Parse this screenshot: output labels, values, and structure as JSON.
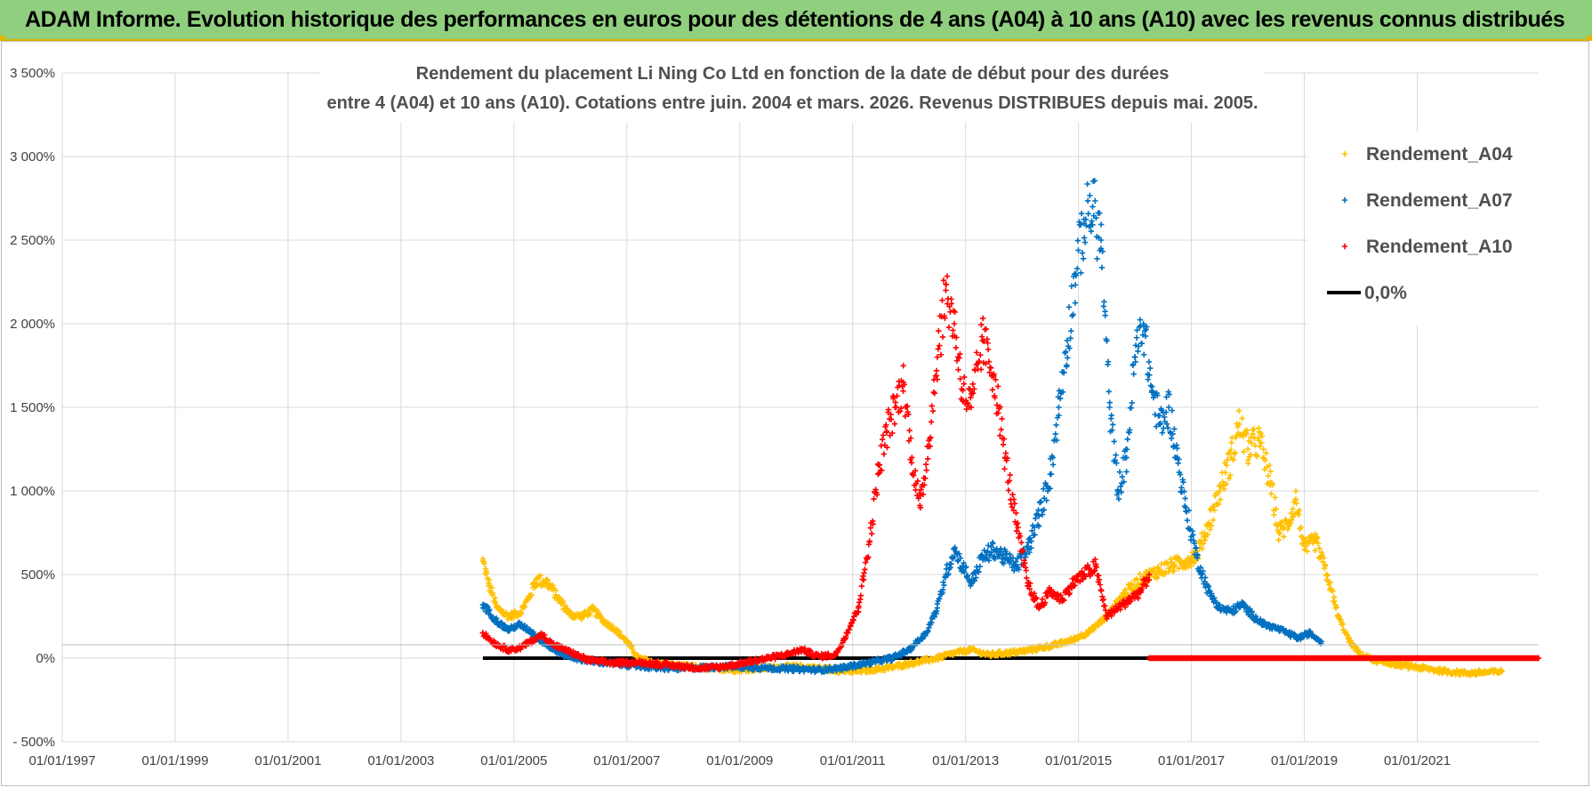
{
  "banner": {
    "title": "ADAM Informe. Evolution historique des performances en euros pour des détentions de 4 ans (A04) à 10 ans (A10) avec les revenus connus distribués"
  },
  "chart_data": {
    "type": "scatter",
    "title": [
      "Rendement du placement Li Ning Co Ltd en fonction de la date de début pour des durées",
      "entre 4 (A04) et 10 ans (A10).  Cotations entre juin. 2004 et mars. 2026. Revenus DISTRIBUES depuis mai. 2005."
    ],
    "xlabel": "",
    "ylabel": "",
    "x_ticks": [
      "01/01/1997",
      "01/01/1999",
      "01/01/2001",
      "01/01/2003",
      "01/01/2005",
      "01/01/2007",
      "01/01/2009",
      "01/01/2011",
      "01/01/2013",
      "01/01/2015",
      "01/01/2017",
      "01/01/2019",
      "01/01/2021"
    ],
    "y_ticks": [
      "3 500%",
      "3 000%",
      "2 500%",
      "2 000%",
      "1 500%",
      "1 000%",
      "500%",
      "0%",
      "- 500%"
    ],
    "xlim": [
      1997.0,
      2023.15
    ],
    "ylim": [
      -500,
      3500
    ],
    "grid": true,
    "legend_position": "top-right",
    "legend": [
      {
        "name": "Rendement_A04",
        "color": "#ffc000",
        "marker": "+"
      },
      {
        "name": "Rendement_A07",
        "color": "#0070c0",
        "marker": "+"
      },
      {
        "name": "Rendement_A10",
        "color": "#ff0000",
        "marker": "+"
      },
      {
        "name": "0,0%",
        "color": "#000000",
        "marker": "line"
      }
    ],
    "series": [
      {
        "name": "Rendement_A04",
        "color": "#ffc000",
        "x": [
          2004.45,
          2004.55,
          2004.7,
          2004.9,
          2005.1,
          2005.25,
          2005.4,
          2005.6,
          2005.8,
          2006.0,
          2006.2,
          2006.4,
          2006.6,
          2006.8,
          2007.0,
          2007.2,
          2007.5,
          2007.8,
          2008.1,
          2008.5,
          2008.9,
          2009.2,
          2009.6,
          2010.0,
          2010.4,
          2010.8,
          2011.0,
          2011.3,
          2011.6,
          2011.9,
          2012.2,
          2012.5,
          2012.8,
          2013.1,
          2013.4,
          2013.7,
          2014.0,
          2014.3,
          2014.6,
          2014.9,
          2015.2,
          2015.5,
          2015.8,
          2016.1,
          2016.4,
          2016.7,
          2016.9,
          2017.1,
          2017.3,
          2017.5,
          2017.7,
          2017.85,
          2018.0,
          2018.2,
          2018.4,
          2018.55,
          2018.7,
          2018.85,
          2019.0,
          2019.2,
          2019.4,
          2019.6,
          2019.8,
          2020.0,
          2020.3,
          2020.7,
          2021.1,
          2021.5,
          2021.9,
          2022.2,
          2022.5
        ],
        "values": [
          580,
          450,
          300,
          250,
          270,
          350,
          470,
          450,
          350,
          260,
          250,
          290,
          220,
          170,
          100,
          0,
          -30,
          -40,
          -50,
          -60,
          -70,
          -65,
          -55,
          -50,
          -60,
          -75,
          -80,
          -70,
          -60,
          -40,
          -20,
          0,
          30,
          50,
          20,
          30,
          40,
          60,
          80,
          110,
          160,
          250,
          380,
          470,
          520,
          560,
          580,
          620,
          800,
          1000,
          1200,
          1400,
          1250,
          1300,
          1050,
          750,
          800,
          950,
          650,
          700,
          500,
          250,
          100,
          20,
          -20,
          -40,
          -60,
          -80,
          -90,
          -85,
          -80
        ]
      },
      {
        "name": "Rendement_A07",
        "color": "#0070c0",
        "x": [
          2004.45,
          2004.55,
          2004.7,
          2004.9,
          2005.1,
          2005.3,
          2005.5,
          2005.7,
          2005.9,
          2006.1,
          2006.4,
          2006.7,
          2007.0,
          2007.3,
          2007.6,
          2008.0,
          2008.4,
          2008.8,
          2009.2,
          2009.6,
          2010.0,
          2010.4,
          2010.8,
          2011.1,
          2011.4,
          2011.7,
          2012.0,
          2012.3,
          2012.5,
          2012.65,
          2012.8,
          2012.95,
          2013.1,
          2013.3,
          2013.5,
          2013.7,
          2013.9,
          2014.1,
          2014.3,
          2014.5,
          2014.65,
          2014.8,
          2014.95,
          2015.1,
          2015.25,
          2015.4,
          2015.55,
          2015.7,
          2015.85,
          2016.0,
          2016.15,
          2016.3,
          2016.45,
          2016.6,
          2016.75,
          2016.9,
          2017.1,
          2017.3,
          2017.5,
          2017.7,
          2017.9,
          2018.1,
          2018.3,
          2018.5,
          2018.7,
          2018.9,
          2019.1,
          2019.3
        ],
        "values": [
          320,
          280,
          220,
          170,
          200,
          160,
          100,
          50,
          20,
          0,
          -20,
          -30,
          -40,
          -50,
          -60,
          -60,
          -55,
          -50,
          -55,
          -60,
          -65,
          -70,
          -60,
          -40,
          -20,
          0,
          50,
          150,
          300,
          500,
          650,
          550,
          450,
          600,
          650,
          600,
          550,
          650,
          850,
          1100,
          1500,
          1900,
          2300,
          2600,
          2700,
          2500,
          1500,
          1000,
          1200,
          1800,
          2000,
          1600,
          1400,
          1500,
          1200,
          900,
          600,
          400,
          300,
          280,
          320,
          250,
          200,
          180,
          150,
          120,
          150,
          100
        ]
      },
      {
        "name": "Rendement_A10",
        "color": "#ff0000",
        "x": [
          2004.45,
          2004.55,
          2004.7,
          2004.9,
          2005.1,
          2005.3,
          2005.5,
          2005.7,
          2005.9,
          2006.1,
          2006.3,
          2006.5,
          2006.8,
          2007.1,
          2007.4,
          2007.7,
          2008.0,
          2008.3,
          2008.6,
          2008.9,
          2009.2,
          2009.5,
          2009.8,
          2010.1,
          2010.4,
          2010.7,
          2010.9,
          2011.1,
          2011.3,
          2011.45,
          2011.6,
          2011.75,
          2011.9,
          2012.05,
          2012.2,
          2012.35,
          2012.5,
          2012.65,
          2012.8,
          2012.95,
          2013.1,
          2013.3,
          2013.5,
          2013.7,
          2013.9,
          2014.1,
          2014.3,
          2014.5,
          2014.7,
          2014.9,
          2015.1,
          2015.3,
          2015.5,
          2015.7,
          2015.9,
          2016.1,
          2016.25
        ],
        "values": [
          150,
          120,
          80,
          50,
          60,
          100,
          140,
          80,
          50,
          20,
          -10,
          -20,
          -30,
          -25,
          -30,
          -40,
          -50,
          -60,
          -55,
          -40,
          -20,
          0,
          20,
          50,
          10,
          20,
          150,
          300,
          700,
          1100,
          1350,
          1500,
          1650,
          1200,
          900,
          1300,
          1800,
          2200,
          2000,
          1600,
          1500,
          1900,
          1700,
          1200,
          800,
          450,
          300,
          400,
          350,
          450,
          500,
          550,
          250,
          300,
          350,
          400,
          500
        ],
        "flat_segment": {
          "x_start": 2016.25,
          "x_end": 2023.15,
          "value": 0
        }
      },
      {
        "name": "0,0%",
        "color": "#000000",
        "type": "line",
        "x": [
          2004.45,
          2016.25
        ],
        "values": [
          0,
          0
        ]
      }
    ]
  }
}
